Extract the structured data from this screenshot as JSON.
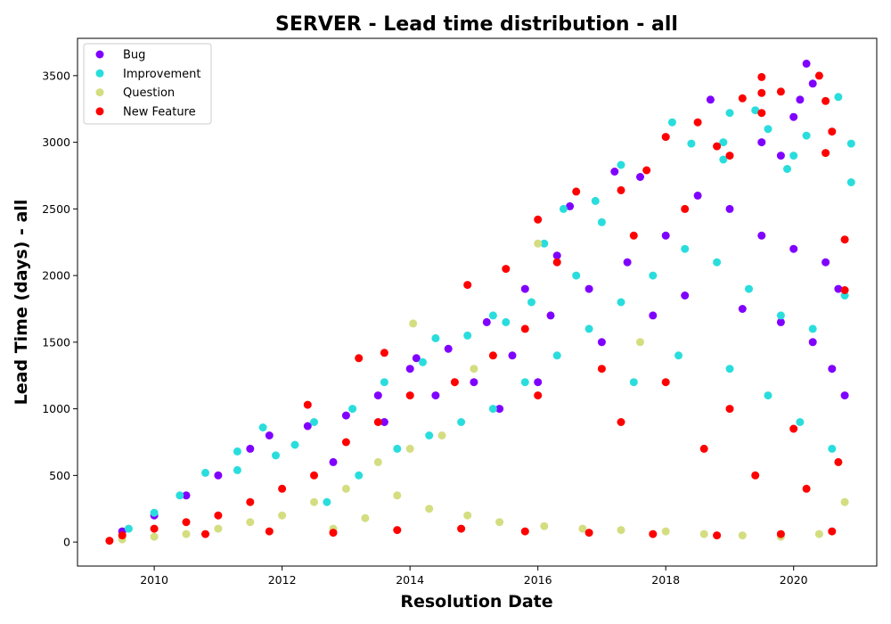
{
  "chart_data": {
    "type": "scatter",
    "title": "SERVER - Lead time distribution - all",
    "xlabel": "Resolution Date",
    "ylabel": "Lead Time (days) - all",
    "xlim": [
      2008.8,
      2021.3
    ],
    "ylim": [
      -180,
      3780
    ],
    "x_ticks": [
      2010,
      2012,
      2014,
      2016,
      2018,
      2020
    ],
    "y_ticks": [
      0,
      500,
      1000,
      1500,
      2000,
      2500,
      3000,
      3500
    ],
    "grid": false,
    "legend_position": "top-left",
    "series": [
      {
        "name": "Bug",
        "color": "#8000ff",
        "points": [
          [
            2014.1,
            1380
          ],
          [
            2016.5,
            2520
          ],
          [
            2017.6,
            2740
          ],
          [
            2018.7,
            3320
          ],
          [
            2019.5,
            3000
          ],
          [
            2020.2,
            3590
          ],
          [
            2020.3,
            3440
          ],
          [
            2020.1,
            3320
          ],
          [
            2020.0,
            3190
          ],
          [
            2019.8,
            2900
          ],
          [
            2017.2,
            2780
          ],
          [
            2016.3,
            2150
          ],
          [
            2015.8,
            1900
          ],
          [
            2015.2,
            1650
          ],
          [
            2014.6,
            1450
          ],
          [
            2014.0,
            1300
          ],
          [
            2013.5,
            1100
          ],
          [
            2013.0,
            950
          ],
          [
            2012.4,
            870
          ],
          [
            2011.8,
            800
          ],
          [
            2011.5,
            700
          ],
          [
            2011.0,
            500
          ],
          [
            2010.5,
            350
          ],
          [
            2010.0,
            200
          ],
          [
            2009.5,
            80
          ],
          [
            2012.8,
            600
          ],
          [
            2013.6,
            900
          ],
          [
            2014.4,
            1100
          ],
          [
            2015.0,
            1200
          ],
          [
            2015.6,
            1400
          ],
          [
            2016.2,
            1700
          ],
          [
            2016.8,
            1900
          ],
          [
            2017.4,
            2100
          ],
          [
            2018.0,
            2300
          ],
          [
            2018.5,
            2600
          ],
          [
            2019.0,
            2500
          ],
          [
            2019.5,
            2300
          ],
          [
            2020.0,
            2200
          ],
          [
            2020.5,
            2100
          ],
          [
            2020.7,
            1900
          ],
          [
            2017.0,
            1500
          ],
          [
            2017.8,
            1700
          ],
          [
            2018.3,
            1850
          ],
          [
            2019.2,
            1750
          ],
          [
            2019.8,
            1650
          ],
          [
            2020.3,
            1500
          ],
          [
            2020.6,
            1300
          ],
          [
            2020.8,
            1100
          ],
          [
            2016.0,
            1200
          ],
          [
            2015.4,
            1000
          ]
        ]
      },
      {
        "name": "Improvement",
        "color": "#2adddd",
        "points": [
          [
            2011.3,
            680
          ],
          [
            2011.7,
            860
          ],
          [
            2012.2,
            730
          ],
          [
            2014.4,
            1530
          ],
          [
            2015.3,
            1700
          ],
          [
            2016.1,
            2240
          ],
          [
            2016.4,
            2500
          ],
          [
            2016.9,
            2560
          ],
          [
            2017.3,
            2830
          ],
          [
            2018.1,
            3150
          ],
          [
            2018.4,
            2990
          ],
          [
            2018.9,
            3000
          ],
          [
            2019.0,
            3220
          ],
          [
            2019.4,
            3240
          ],
          [
            2019.6,
            3100
          ],
          [
            2020.2,
            3050
          ],
          [
            2020.7,
            3340
          ],
          [
            2020.9,
            2990
          ],
          [
            2020.9,
            2700
          ],
          [
            2018.9,
            2870
          ],
          [
            2019.9,
            2800
          ],
          [
            2020.0,
            2900
          ],
          [
            2017.0,
            2400
          ],
          [
            2016.6,
            2000
          ],
          [
            2015.9,
            1800
          ],
          [
            2015.5,
            1650
          ],
          [
            2014.9,
            1550
          ],
          [
            2014.2,
            1350
          ],
          [
            2013.6,
            1200
          ],
          [
            2013.1,
            1000
          ],
          [
            2012.5,
            900
          ],
          [
            2011.9,
            650
          ],
          [
            2011.3,
            540
          ],
          [
            2010.8,
            520
          ],
          [
            2010.4,
            350
          ],
          [
            2010.0,
            220
          ],
          [
            2009.6,
            100
          ],
          [
            2012.7,
            300
          ],
          [
            2013.2,
            500
          ],
          [
            2013.8,
            700
          ],
          [
            2014.3,
            800
          ],
          [
            2014.8,
            900
          ],
          [
            2015.3,
            1000
          ],
          [
            2015.8,
            1200
          ],
          [
            2016.3,
            1400
          ],
          [
            2016.8,
            1600
          ],
          [
            2017.3,
            1800
          ],
          [
            2017.8,
            2000
          ],
          [
            2018.3,
            2200
          ],
          [
            2018.8,
            2100
          ],
          [
            2019.3,
            1900
          ],
          [
            2019.8,
            1700
          ],
          [
            2020.3,
            1600
          ],
          [
            2020.8,
            1850
          ],
          [
            2017.5,
            1200
          ],
          [
            2018.2,
            1400
          ],
          [
            2019.0,
            1300
          ],
          [
            2019.6,
            1100
          ],
          [
            2020.1,
            900
          ],
          [
            2020.6,
            700
          ]
        ]
      },
      {
        "name": "Question",
        "color": "#d4dd80",
        "points": [
          [
            2014.05,
            1640
          ],
          [
            2016.0,
            2240
          ],
          [
            2015.0,
            1300
          ],
          [
            2014.5,
            800
          ],
          [
            2014.0,
            700
          ],
          [
            2013.5,
            600
          ],
          [
            2013.0,
            400
          ],
          [
            2012.5,
            300
          ],
          [
            2012.0,
            200
          ],
          [
            2011.5,
            150
          ],
          [
            2011.0,
            100
          ],
          [
            2010.5,
            60
          ],
          [
            2010.0,
            40
          ],
          [
            2009.5,
            20
          ],
          [
            2013.8,
            350
          ],
          [
            2014.3,
            250
          ],
          [
            2014.9,
            200
          ],
          [
            2015.4,
            150
          ],
          [
            2016.1,
            120
          ],
          [
            2016.7,
            100
          ],
          [
            2017.3,
            90
          ],
          [
            2018.0,
            80
          ],
          [
            2018.6,
            60
          ],
          [
            2019.2,
            50
          ],
          [
            2019.8,
            40
          ],
          [
            2020.4,
            60
          ],
          [
            2020.8,
            300
          ],
          [
            2017.6,
            1500
          ],
          [
            2012.8,
            100
          ],
          [
            2013.3,
            180
          ]
        ]
      },
      {
        "name": "New Feature",
        "color": "#ff0000",
        "points": [
          [
            2012.4,
            1030
          ],
          [
            2013.2,
            1380
          ],
          [
            2013.6,
            1420
          ],
          [
            2014.9,
            1930
          ],
          [
            2015.5,
            2050
          ],
          [
            2016.0,
            2420
          ],
          [
            2016.6,
            2630
          ],
          [
            2017.3,
            2640
          ],
          [
            2017.7,
            2790
          ],
          [
            2018.0,
            3040
          ],
          [
            2018.5,
            3150
          ],
          [
            2018.8,
            2970
          ],
          [
            2019.2,
            3330
          ],
          [
            2019.5,
            3490
          ],
          [
            2019.5,
            3370
          ],
          [
            2019.5,
            3220
          ],
          [
            2019.8,
            3380
          ],
          [
            2020.4,
            3500
          ],
          [
            2020.5,
            3310
          ],
          [
            2020.6,
            3080
          ],
          [
            2020.5,
            2920
          ],
          [
            2019.0,
            2900
          ],
          [
            2020.8,
            2270
          ],
          [
            2020.8,
            1890
          ],
          [
            2018.3,
            2500
          ],
          [
            2017.5,
            2300
          ],
          [
            2016.3,
            2100
          ],
          [
            2015.8,
            1600
          ],
          [
            2015.3,
            1400
          ],
          [
            2014.7,
            1200
          ],
          [
            2014.0,
            1100
          ],
          [
            2013.5,
            900
          ],
          [
            2013.0,
            750
          ],
          [
            2012.5,
            500
          ],
          [
            2012.0,
            400
          ],
          [
            2011.5,
            300
          ],
          [
            2011.0,
            200
          ],
          [
            2010.5,
            150
          ],
          [
            2010.0,
            100
          ],
          [
            2009.5,
            50
          ],
          [
            2009.3,
            10
          ],
          [
            2010.8,
            60
          ],
          [
            2011.8,
            80
          ],
          [
            2012.8,
            70
          ],
          [
            2013.8,
            90
          ],
          [
            2014.8,
            100
          ],
          [
            2015.8,
            80
          ],
          [
            2016.8,
            70
          ],
          [
            2017.8,
            60
          ],
          [
            2018.8,
            50
          ],
          [
            2019.8,
            60
          ],
          [
            2020.6,
            80
          ],
          [
            2016.0,
            1100
          ],
          [
            2017.0,
            1300
          ],
          [
            2018.0,
            1200
          ],
          [
            2019.0,
            1000
          ],
          [
            2020.0,
            850
          ],
          [
            2020.7,
            600
          ],
          [
            2017.3,
            900
          ],
          [
            2018.6,
            700
          ],
          [
            2019.4,
            500
          ],
          [
            2020.2,
            400
          ]
        ]
      }
    ]
  }
}
